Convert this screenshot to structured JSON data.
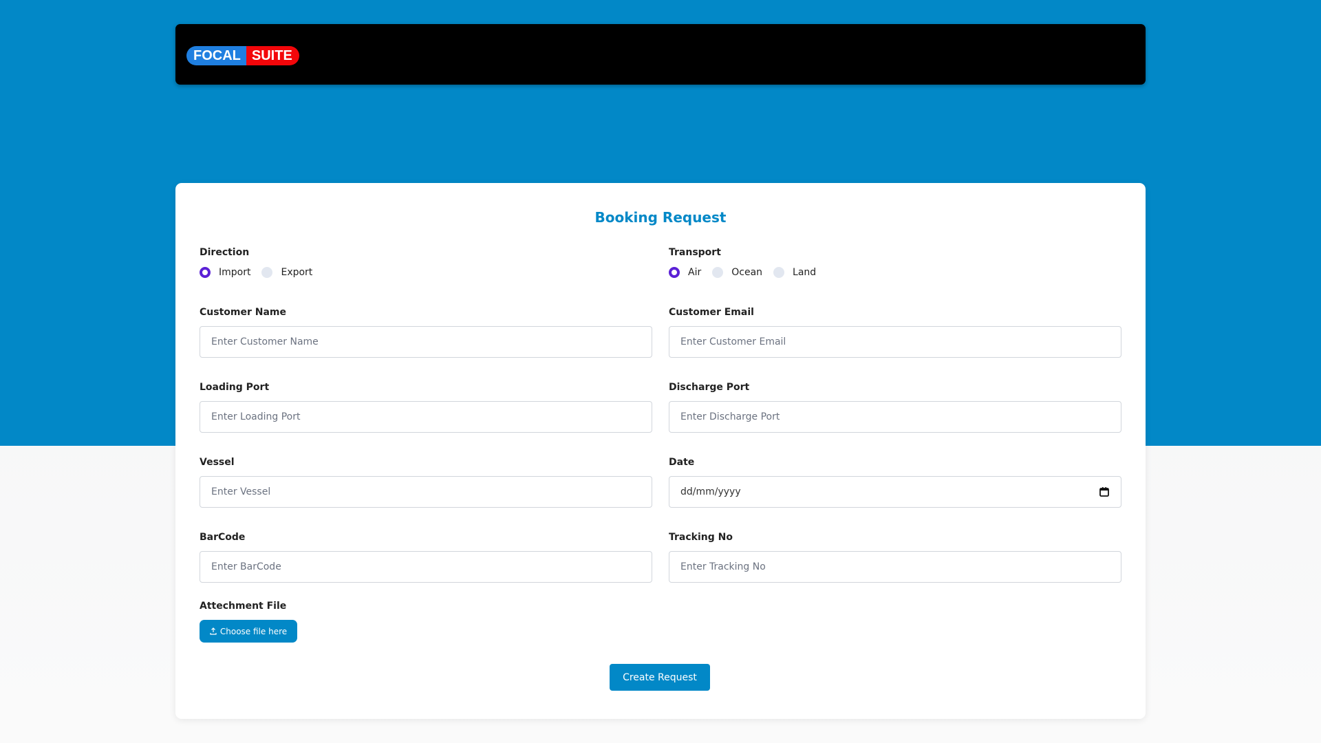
{
  "brand": {
    "logo_part1": "FOCAL",
    "logo_part2": "SUITE"
  },
  "form": {
    "title": "Booking Request",
    "direction": {
      "label": "Direction",
      "options": [
        "Import",
        "Export"
      ],
      "selected": "Import"
    },
    "transport": {
      "label": "Transport",
      "options": [
        "Air",
        "Ocean",
        "Land"
      ],
      "selected": "Air"
    },
    "fields": [
      {
        "label": "Customer Name",
        "placeholder": "Enter Customer Name"
      },
      {
        "label": "Customer Email",
        "placeholder": "Enter Customer Email"
      },
      {
        "label": "Loading Port",
        "placeholder": "Enter Loading Port"
      },
      {
        "label": "Discharge Port",
        "placeholder": "Enter Discharge Port"
      },
      {
        "label": "Vessel",
        "placeholder": "Enter Vessel"
      },
      {
        "label": "Date",
        "value": "dd/mm/yyyy"
      },
      {
        "label": "BarCode",
        "placeholder": "Enter BarCode"
      },
      {
        "label": "Tracking No",
        "placeholder": "Enter Tracking No"
      }
    ],
    "attachment": {
      "label": "Attechment File",
      "button": "Choose file here",
      "icon": "upload-icon"
    },
    "submit": "Create Request"
  },
  "colors": {
    "accent": "#0288c7",
    "radio_selected": "#5b21d6"
  }
}
